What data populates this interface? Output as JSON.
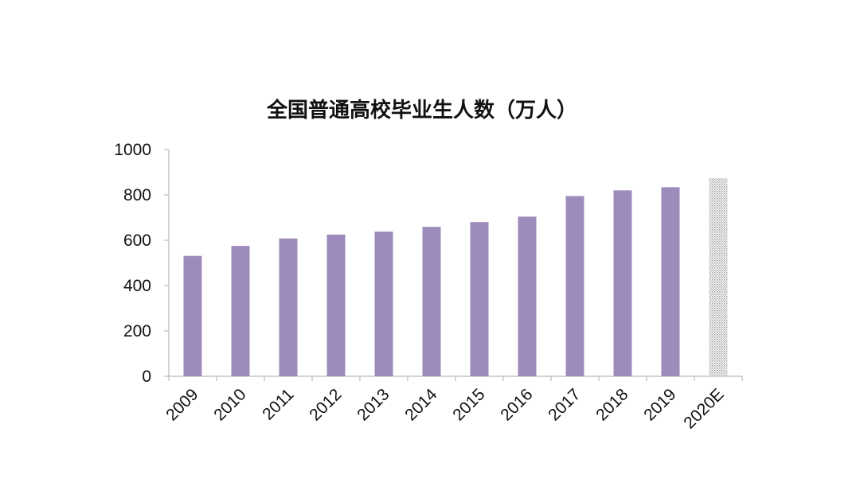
{
  "chart_data": {
    "type": "bar",
    "title": "全国普通高校毕业生人数（万人）",
    "xlabel": "",
    "ylabel": "",
    "categories": [
      "2009",
      "2010",
      "2011",
      "2012",
      "2013",
      "2014",
      "2015",
      "2016",
      "2017",
      "2018",
      "2019",
      "2020E"
    ],
    "values": [
      531,
      575,
      608,
      625,
      638,
      659,
      680,
      704,
      795,
      820,
      834,
      874
    ],
    "estimated": [
      false,
      false,
      false,
      false,
      false,
      false,
      false,
      false,
      false,
      false,
      false,
      true
    ],
    "ylim": [
      0,
      1000
    ],
    "yticks": [
      0,
      200,
      400,
      600,
      800,
      1000
    ],
    "grid": false,
    "legend": "none",
    "colors": {
      "bar": "#9d8bbc",
      "estimate_bar": "#d6d6d6",
      "axis": "#bbbbbb"
    }
  }
}
